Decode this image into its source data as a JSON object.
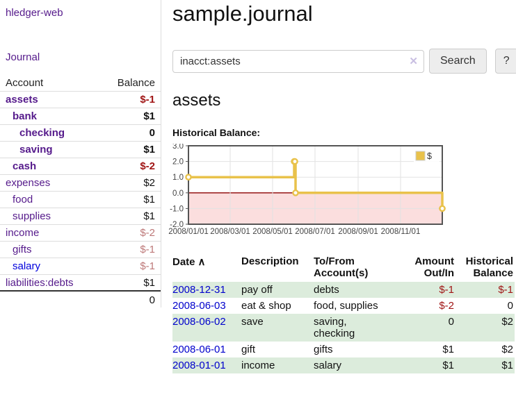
{
  "app": {
    "title": "hledger-web"
  },
  "sidebar": {
    "nav_journal": "Journal",
    "table": {
      "account_header": "Account",
      "balance_header": "Balance",
      "rows": [
        {
          "account": "assets",
          "balance": "$-1",
          "depth": 1,
          "highlight": true,
          "balance_style": "neg-strong",
          "link_style": ""
        },
        {
          "account": "bank",
          "balance": "$1",
          "depth": 2,
          "highlight": true,
          "balance_style": "",
          "link_style": ""
        },
        {
          "account": "checking",
          "balance": "0",
          "depth": 3,
          "highlight": true,
          "balance_style": "",
          "link_style": ""
        },
        {
          "account": "saving",
          "balance": "$1",
          "depth": 3,
          "highlight": true,
          "balance_style": "",
          "link_style": ""
        },
        {
          "account": "cash",
          "balance": "$-2",
          "depth": 2,
          "highlight": true,
          "balance_style": "neg-strong",
          "link_style": ""
        },
        {
          "account": "expenses",
          "balance": "$2",
          "depth": 1,
          "highlight": false,
          "balance_style": "",
          "link_style": ""
        },
        {
          "account": "food",
          "balance": "$1",
          "depth": 2,
          "highlight": false,
          "balance_style": "",
          "link_style": ""
        },
        {
          "account": "supplies",
          "balance": "$1",
          "depth": 2,
          "highlight": false,
          "balance_style": "",
          "link_style": ""
        },
        {
          "account": "income",
          "balance": "$-2",
          "depth": 1,
          "highlight": false,
          "balance_style": "neg-faded",
          "link_style": ""
        },
        {
          "account": "gifts",
          "balance": "$-1",
          "depth": 2,
          "highlight": false,
          "balance_style": "neg-faded",
          "link_style": ""
        },
        {
          "account": "salary",
          "balance": "$-1",
          "depth": 2,
          "highlight": false,
          "balance_style": "neg-faded",
          "link_style": "unvisited"
        },
        {
          "account": "liabilities:debts",
          "balance": "$1",
          "depth": 1,
          "highlight": false,
          "balance_style": "",
          "link_style": ""
        }
      ],
      "total": "0"
    }
  },
  "main": {
    "title": "sample.journal",
    "search": {
      "value": "inacct:assets",
      "clear_icon": "✕",
      "search_button": "Search",
      "help_button": "?"
    },
    "account_heading": "assets",
    "chart_label": "Historical Balance:",
    "register": {
      "headers": {
        "date": "Date",
        "sort_icon": "∧",
        "description": "Description",
        "accounts": "To/From Account(s)",
        "amount": "Amount Out/In",
        "balance": "Historical Balance"
      },
      "rows": [
        {
          "date": "2008-12-31",
          "description": "pay off",
          "accounts": "debts",
          "amount": "$-1",
          "amount_negative": true,
          "balance": "$-1",
          "balance_negative": true
        },
        {
          "date": "2008-06-03",
          "description": "eat & shop",
          "accounts": "food, supplies",
          "amount": "$-2",
          "amount_negative": true,
          "balance": "0",
          "balance_negative": false
        },
        {
          "date": "2008-06-02",
          "description": "save",
          "accounts": "saving, checking",
          "amount": "0",
          "amount_negative": false,
          "balance": "$2",
          "balance_negative": false
        },
        {
          "date": "2008-06-01",
          "description": "gift",
          "accounts": "gifts",
          "amount": "$1",
          "amount_negative": false,
          "balance": "$2",
          "balance_negative": false
        },
        {
          "date": "2008-01-01",
          "description": "income",
          "accounts": "salary",
          "amount": "$1",
          "amount_negative": false,
          "balance": "$1",
          "balance_negative": false
        }
      ]
    }
  },
  "chart_data": {
    "type": "line",
    "style": "step",
    "title": "Historical Balance",
    "xlim": [
      "2008-01-01",
      "2008-12-31"
    ],
    "ylim": [
      -2,
      3
    ],
    "y_ticks": [
      "3.0",
      "2.0",
      "1.0",
      "0.0",
      "-1.0",
      "-2.0"
    ],
    "x_ticks": [
      "2008/01/01",
      "2008/03/01",
      "2008/05/01",
      "2008/07/01",
      "2008/09/01",
      "2008/11/01"
    ],
    "series": [
      {
        "name": "$",
        "color": "#e9c24b",
        "points": [
          [
            "2008-01-01",
            1
          ],
          [
            "2008-06-01",
            2
          ],
          [
            "2008-06-02",
            2
          ],
          [
            "2008-06-03",
            0
          ],
          [
            "2008-12-31",
            -1
          ]
        ]
      }
    ],
    "legend": {
      "label": "$",
      "position": "top-right",
      "swatch_color": "#e9c24b"
    },
    "grid_color": "#e2e2e2",
    "border_color": "#545454",
    "zero_line_color": "#8b0000",
    "negative_region_color": "#fbdede"
  }
}
